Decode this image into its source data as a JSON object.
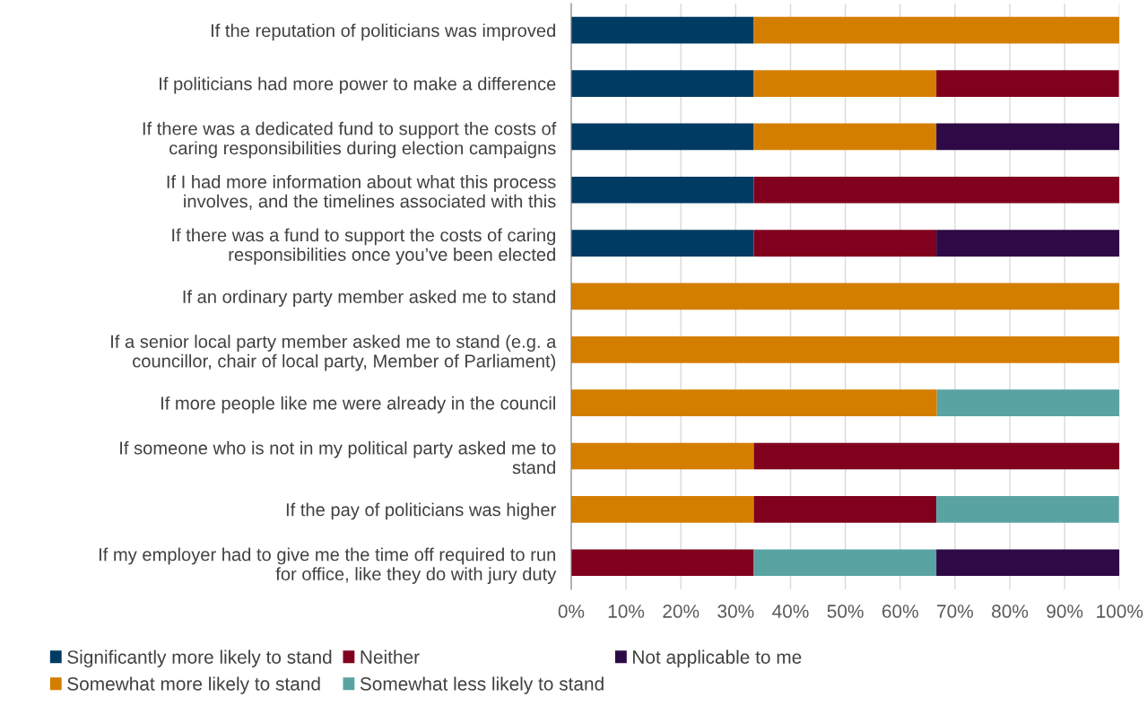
{
  "chart_data": {
    "type": "bar",
    "orientation": "horizontal",
    "stacked": true,
    "categories": [
      "If the reputation of politicians was improved",
      "If politicians had more power to make a difference",
      "If there was a dedicated fund to support the costs of\ncaring responsibilities during election campaigns",
      "If I had more information about what this process\ninvolves, and the timelines associated with this",
      "If there was a fund to support the costs of caring\nresponsibilities once you’ve been elected",
      "If an ordinary party member asked me to stand",
      "If a senior local party member asked me to stand (e.g. a\ncouncillor, chair of local party, Member of Parliament)",
      "If more people like me were already in the council",
      "If someone who is not in my political party asked me to\nstand",
      "If the pay of politicians was higher",
      "If my employer had to give me the time off required to run\nfor office, like they do with jury duty"
    ],
    "series": [
      {
        "name": "Significantly more likely to stand",
        "color": "#003b64",
        "values": [
          33.3,
          33.3,
          33.3,
          33.3,
          33.3,
          0,
          0,
          0,
          0,
          0,
          0
        ]
      },
      {
        "name": "Somewhat more likely to stand",
        "color": "#d47e00",
        "values": [
          66.7,
          33.3,
          33.3,
          0,
          0,
          100,
          100,
          66.7,
          33.3,
          33.3,
          0
        ]
      },
      {
        "name": "Neither",
        "color": "#80001e",
        "values": [
          0,
          33.3,
          0,
          66.7,
          33.3,
          0,
          0,
          0,
          66.7,
          33.3,
          33.3
        ]
      },
      {
        "name": "Somewhat less likely to stand",
        "color": "#5aa3a3",
        "values": [
          0,
          0,
          0,
          0,
          0,
          0,
          0,
          33.3,
          0,
          33.3,
          33.3
        ]
      },
      {
        "name": "Not applicable to me",
        "color": "#2d0a45",
        "values": [
          0,
          0,
          33.4,
          0,
          33.4,
          0,
          0,
          0,
          0,
          0,
          33.4
        ]
      }
    ],
    "xlim": [
      0,
      100
    ],
    "xticks": [
      {
        "value": 0,
        "label": "0%"
      },
      {
        "value": 10,
        "label": "10%"
      },
      {
        "value": 20,
        "label": "20%"
      },
      {
        "value": 30,
        "label": "30%"
      },
      {
        "value": 40,
        "label": "40%"
      },
      {
        "value": 50,
        "label": "50%"
      },
      {
        "value": 60,
        "label": "60%"
      },
      {
        "value": 70,
        "label": "70%"
      },
      {
        "value": 80,
        "label": "80%"
      },
      {
        "value": 90,
        "label": "90%"
      },
      {
        "value": 100,
        "label": "100%"
      }
    ],
    "grid": "x",
    "legend": "bottom"
  }
}
